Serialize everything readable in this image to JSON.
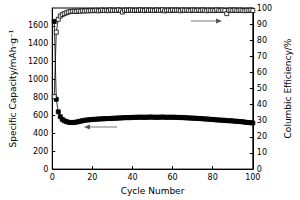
{
  "chart_data": {
    "type": "line",
    "xlabel": "Cycle Number",
    "ylabel": "Specific Capacity/mAh·g⁻¹",
    "y2label": "Columbic Efficiency/%",
    "x": [
      1,
      2,
      3,
      4,
      5,
      6,
      7,
      8,
      9,
      10,
      11,
      12,
      13,
      14,
      15,
      16,
      17,
      18,
      19,
      20,
      21,
      22,
      23,
      24,
      25,
      26,
      27,
      28,
      29,
      30,
      31,
      32,
      33,
      34,
      35,
      36,
      37,
      38,
      39,
      40,
      41,
      42,
      43,
      44,
      45,
      46,
      47,
      48,
      49,
      50,
      51,
      52,
      53,
      54,
      55,
      56,
      57,
      58,
      59,
      60,
      61,
      62,
      63,
      64,
      65,
      66,
      67,
      68,
      69,
      70,
      71,
      72,
      73,
      74,
      75,
      76,
      77,
      78,
      79,
      80,
      81,
      82,
      83,
      84,
      85,
      86,
      87,
      88,
      89,
      90,
      91,
      92,
      93,
      94,
      95,
      96,
      97,
      98,
      99,
      100
    ],
    "series": [
      {
        "name": "Specific Capacity",
        "color": "#000000",
        "marker": "square",
        "line_style": "solid",
        "values": [
          1650,
          780,
          640,
          585,
          555,
          540,
          530,
          525,
          520,
          520,
          522,
          525,
          530,
          535,
          540,
          545,
          548,
          550,
          552,
          555,
          555,
          558,
          560,
          560,
          562,
          562,
          565,
          565,
          565,
          568,
          568,
          570,
          570,
          572,
          572,
          575,
          575,
          575,
          575,
          578,
          578,
          578,
          580,
          580,
          580,
          578,
          580,
          580,
          582,
          580,
          580,
          578,
          580,
          580,
          582,
          580,
          578,
          580,
          580,
          578,
          580,
          578,
          576,
          578,
          575,
          575,
          572,
          572,
          570,
          570,
          568,
          568,
          565,
          565,
          562,
          560,
          560,
          558,
          555,
          555,
          552,
          550,
          548,
          548,
          545,
          545,
          542,
          540,
          540,
          538,
          535,
          535,
          532,
          530,
          528,
          525,
          522,
          520,
          518,
          515
        ]
      },
      {
        "name": "Columbic Efficiency",
        "color": "#000000",
        "marker": "open_square",
        "line_style": "solid",
        "axis": "y2",
        "values": [
          45,
          85,
          93,
          95,
          96,
          96.5,
          97,
          97.5,
          97.8,
          98,
          98,
          97.8,
          98.2,
          98,
          98.3,
          98.1,
          98.4,
          98.2,
          98.5,
          98.3,
          98.4,
          98.6,
          98.2,
          98.5,
          98.7,
          98.4,
          98.6,
          98.3,
          98.8,
          98.5,
          98.6,
          98.4,
          98.9,
          98.5,
          97.5,
          98.6,
          98.7,
          98.5,
          98.8,
          98.6,
          98.4,
          98.7,
          98.5,
          98.9,
          98.6,
          98.4,
          98.8,
          98.5,
          98.7,
          98.6,
          98.4,
          98.8,
          98.6,
          98.5,
          98.9,
          98.2,
          98.6,
          98.7,
          98.4,
          98.8,
          98.5,
          98.7,
          98.6,
          98.3,
          98.8,
          98.5,
          98.7,
          98.6,
          98.4,
          98.8,
          98.6,
          98.5,
          98.7,
          98.4,
          98.8,
          98.6,
          98.3,
          98.7,
          98.5,
          98.6,
          98.4,
          98.8,
          98.6,
          98.5,
          98.7,
          98.4,
          96.5,
          98.6,
          98.7,
          98.5,
          98.8,
          98.4,
          98.6,
          98.7,
          98.5,
          98.3,
          98.6,
          98.5,
          98.7,
          98.4
        ]
      }
    ],
    "xlim": [
      0,
      100
    ],
    "xticks": [
      0,
      20,
      40,
      60,
      80,
      100
    ],
    "ylim": [
      0,
      1800
    ],
    "yticks": [
      0,
      200,
      400,
      600,
      800,
      1000,
      1200,
      1400,
      1600
    ],
    "y2lim": [
      0,
      100
    ],
    "y2ticks": [
      0,
      10,
      20,
      30,
      40,
      50,
      60,
      70,
      80,
      90,
      100
    ],
    "grid": false
  }
}
